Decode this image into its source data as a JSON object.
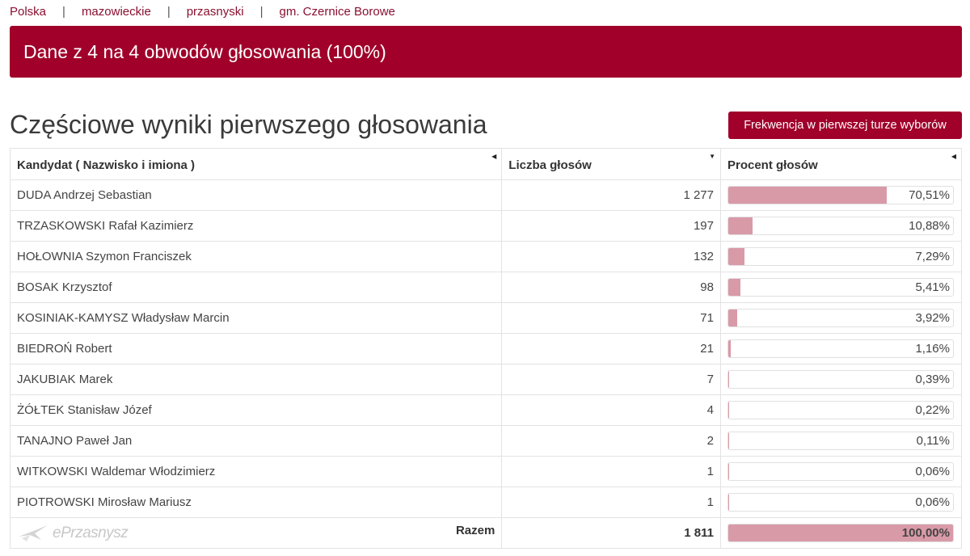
{
  "breadcrumb": [
    "Polska",
    "mazowieckie",
    "przasnyski",
    "gm. Czernice Borowe"
  ],
  "banner": {
    "text": "Dane z 4 na 4 obwodów głosowania (100%)"
  },
  "title": "Częściowe wyniki pierwszego głosowania",
  "turnout_button": "Frekwencja w pierwszej turze wyborów",
  "table": {
    "headers": [
      "Kandydat ( Nazwisko i imiona )",
      "Liczba głosów",
      "Procent głosów"
    ],
    "header_sort_icons": [
      "sort-left-icon",
      "sort-down-icon",
      "sort-left-icon"
    ],
    "rows": [
      {
        "name": "DUDA Andrzej Sebastian",
        "votes": "1 277",
        "percent": "70,51%",
        "fraction": 0.7051
      },
      {
        "name": "TRZASKOWSKI Rafał Kazimierz",
        "votes": "197",
        "percent": "10,88%",
        "fraction": 0.1088
      },
      {
        "name": "HOŁOWNIA Szymon Franciszek",
        "votes": "132",
        "percent": "7,29%",
        "fraction": 0.0729
      },
      {
        "name": "BOSAK Krzysztof",
        "votes": "98",
        "percent": "5,41%",
        "fraction": 0.0541
      },
      {
        "name": "KOSINIAK-KAMYSZ Władysław Marcin",
        "votes": "71",
        "percent": "3,92%",
        "fraction": 0.0392
      },
      {
        "name": "BIEDROŃ Robert",
        "votes": "21",
        "percent": "1,16%",
        "fraction": 0.0116
      },
      {
        "name": "JAKUBIAK Marek",
        "votes": "7",
        "percent": "0,39%",
        "fraction": 0.0039
      },
      {
        "name": "ŻÓŁTEK Stanisław Józef",
        "votes": "4",
        "percent": "0,22%",
        "fraction": 0.0022
      },
      {
        "name": "TANAJNO Paweł Jan",
        "votes": "2",
        "percent": "0,11%",
        "fraction": 0.0011
      },
      {
        "name": "WITKOWSKI Waldemar Włodzimierz",
        "votes": "1",
        "percent": "0,06%",
        "fraction": 0.0006
      },
      {
        "name": "PIOTROWSKI Mirosław Mariusz",
        "votes": "1",
        "percent": "0,06%",
        "fraction": 0.0006
      }
    ],
    "total": {
      "label": "Razem",
      "votes": "1 811",
      "percent": "100,00%",
      "fraction": 1.0
    }
  },
  "watermark": {
    "text": "ePrzasnysz"
  },
  "colors": {
    "accent": "#a0002a",
    "bar_fill": "#d99aa8",
    "link": "#8a1030"
  }
}
